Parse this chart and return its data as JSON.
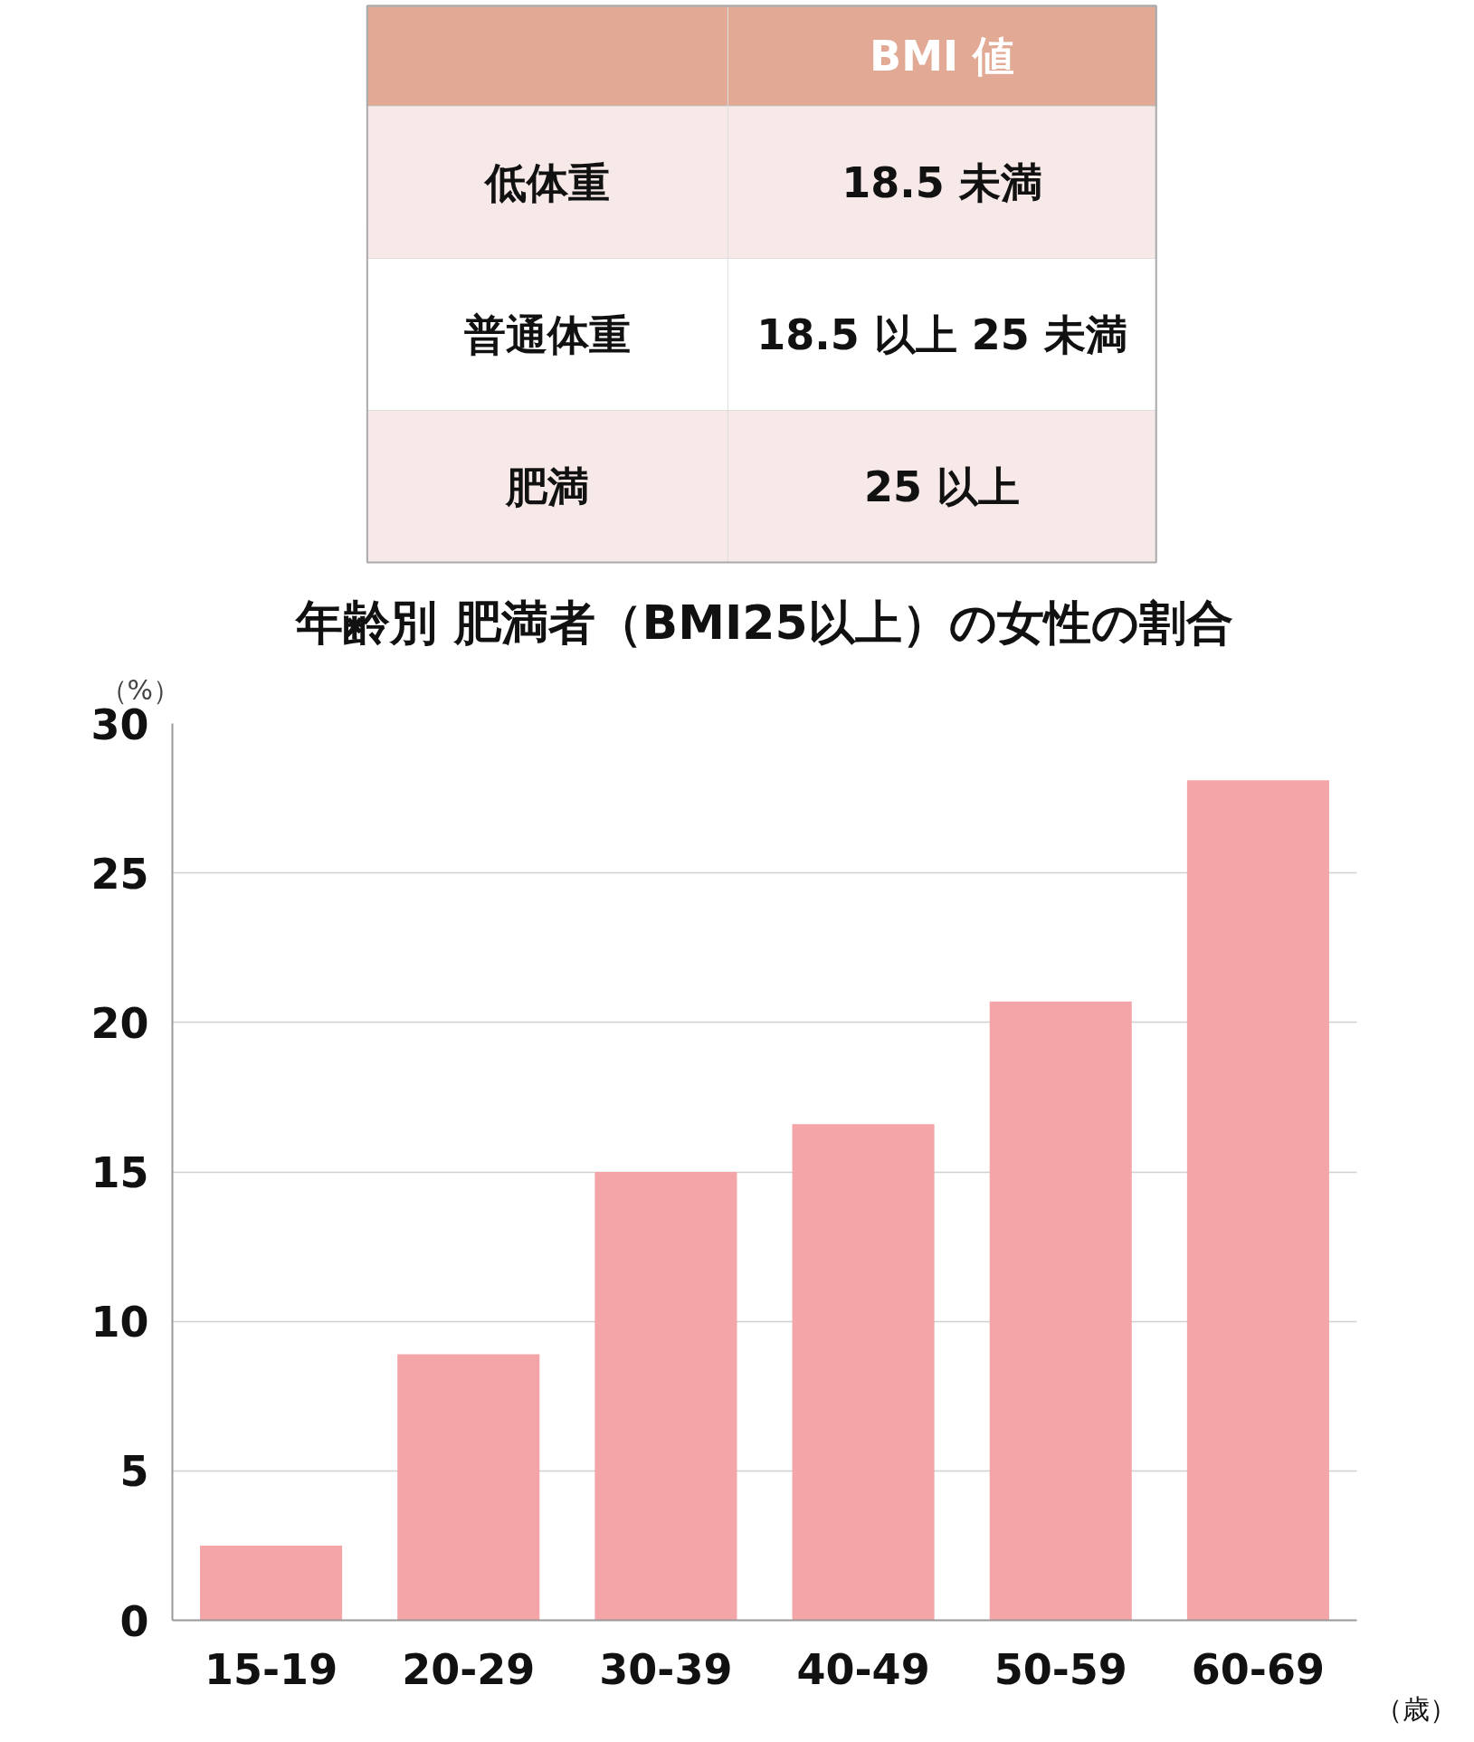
{
  "chart_data": [
    {
      "type": "other",
      "title": "BMI 値",
      "annotations": [
        "低体重",
        "18.5 未満",
        "普通体重",
        "18.5 以上 25 未満",
        "肥満",
        "25 以上"
      ]
    },
    {
      "type": "bar",
      "title": "年齢別 肥満者（BMI25以上）の女性の割合",
      "ylabel": "（%）",
      "xlabel": "（歳）",
      "categories": [
        "15-19",
        "20-29",
        "30-39",
        "40-49",
        "50-59",
        "60-69"
      ],
      "values": [
        2.5,
        8.9,
        15.0,
        16.6,
        20.7,
        28.1
      ],
      "color": "#f4a5a8",
      "ylim": [
        0,
        30
      ],
      "yticks": [
        0,
        5,
        10,
        15,
        20,
        25,
        30
      ],
      "grid": "y"
    }
  ]
}
